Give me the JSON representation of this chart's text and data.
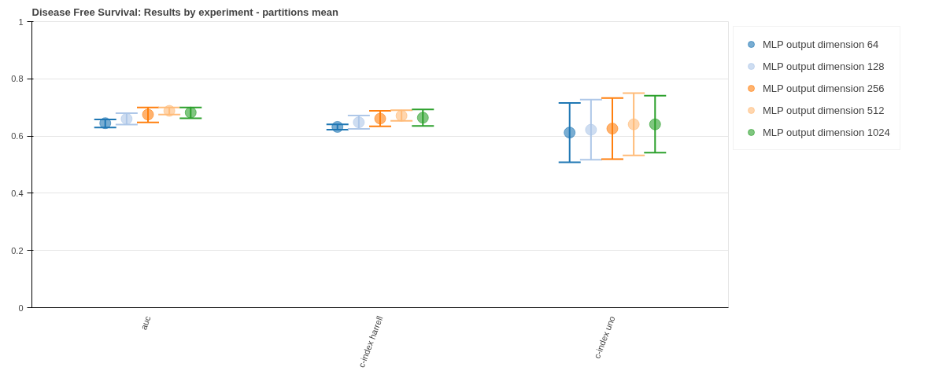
{
  "chart_data": {
    "type": "scatter",
    "title": "Disease Free Survival: Results by experiment - partitions mean",
    "categories": [
      "auc",
      "c-index harrell",
      "c-index uno"
    ],
    "ylim": [
      0,
      1
    ],
    "yticks": [
      0,
      0.2,
      0.4,
      0.6,
      0.8,
      1
    ],
    "grid": "y",
    "legend": "right",
    "marker": "circle",
    "series": [
      {
        "name": "MLP output dimension 64",
        "color": "#1f77b4",
        "values": [
          0.645,
          0.632,
          0.612
        ],
        "errors": [
          [
            0.63,
            0.658
          ],
          [
            0.622,
            0.641
          ],
          [
            0.508,
            0.716
          ]
        ]
      },
      {
        "name": "MLP output dimension 128",
        "color": "#aec7e8",
        "values": [
          0.66,
          0.648,
          0.622
        ],
        "errors": [
          [
            0.64,
            0.68
          ],
          [
            0.625,
            0.672
          ],
          [
            0.517,
            0.727
          ]
        ]
      },
      {
        "name": "MLP output dimension 256",
        "color": "#ff7f0e",
        "values": [
          0.675,
          0.661,
          0.626
        ],
        "errors": [
          [
            0.648,
            0.7
          ],
          [
            0.634,
            0.688
          ],
          [
            0.519,
            0.733
          ]
        ]
      },
      {
        "name": "MLP output dimension 512",
        "color": "#ffbb78",
        "values": [
          0.688,
          0.671,
          0.641
        ],
        "errors": [
          [
            0.675,
            0.7
          ],
          [
            0.653,
            0.69
          ],
          [
            0.532,
            0.75
          ]
        ]
      },
      {
        "name": "MLP output dimension 1024",
        "color": "#2ca02c",
        "values": [
          0.682,
          0.664,
          0.641
        ],
        "errors": [
          [
            0.662,
            0.7
          ],
          [
            0.635,
            0.693
          ],
          [
            0.542,
            0.741
          ]
        ]
      }
    ]
  }
}
